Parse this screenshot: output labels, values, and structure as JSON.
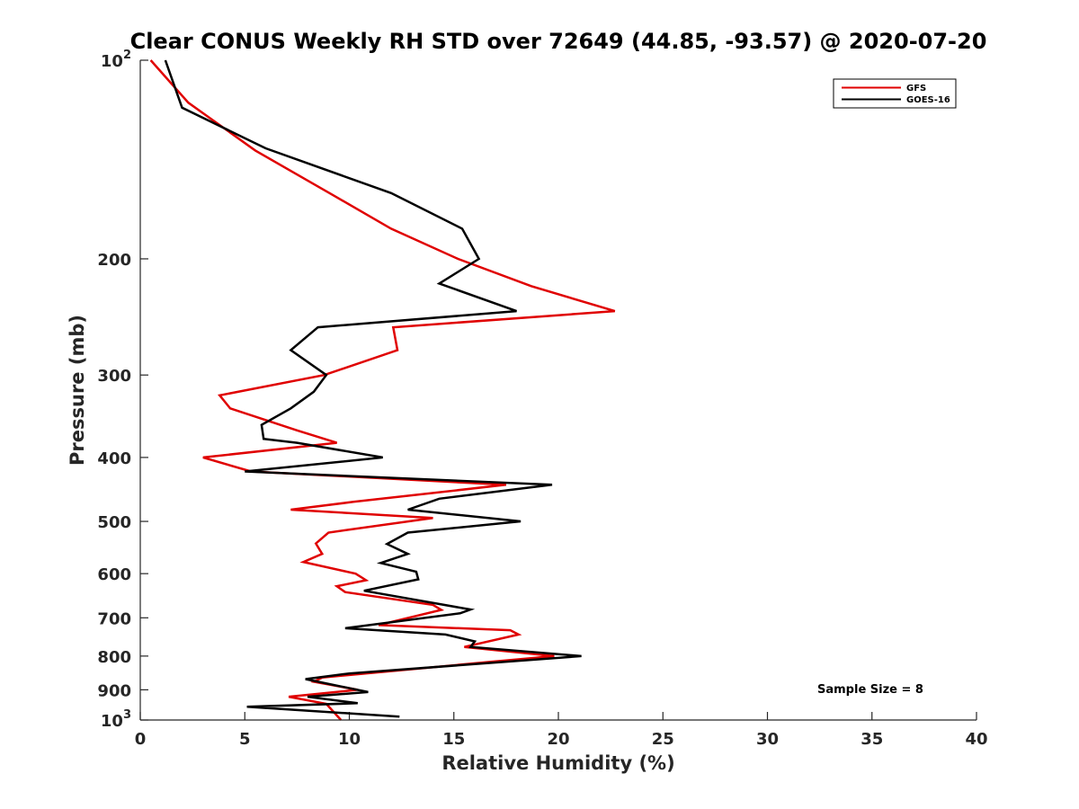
{
  "chart_data": {
    "type": "line",
    "title": "Clear CONUS Weekly RH STD over 72649 (44.85, -93.57) @ 2020-07-20",
    "xlabel": "Relative Humidity (%)",
    "ylabel": "Pressure (mb)",
    "xlim": [
      0,
      40
    ],
    "ylim": [
      100,
      1000
    ],
    "y_scale": "log",
    "y_reversed": true,
    "grid": false,
    "legend_position": "top-right",
    "x_ticks": [
      0,
      5,
      10,
      15,
      20,
      25,
      30,
      35,
      40
    ],
    "x_tick_labels": [
      "0",
      "5",
      "10",
      "15",
      "20",
      "25",
      "30",
      "35",
      "40"
    ],
    "y_ticks": [
      100,
      200,
      300,
      400,
      500,
      600,
      700,
      800,
      900,
      1000
    ],
    "y_tick_labels": [
      {
        "base": "10",
        "exp": "2"
      },
      {
        "base": "200",
        "exp": ""
      },
      {
        "base": "300",
        "exp": ""
      },
      {
        "base": "400",
        "exp": ""
      },
      {
        "base": "500",
        "exp": ""
      },
      {
        "base": "600",
        "exp": ""
      },
      {
        "base": "700",
        "exp": ""
      },
      {
        "base": "800",
        "exp": ""
      },
      {
        "base": "900",
        "exp": ""
      },
      {
        "base": "10",
        "exp": "3"
      }
    ],
    "annotation": "Sample Size = 8",
    "series": [
      {
        "name": "GFS",
        "color": "#e00000",
        "points": [
          [
            0.5,
            100
          ],
          [
            2.3,
            116
          ],
          [
            5.5,
            137
          ],
          [
            9.2,
            160
          ],
          [
            12.0,
            180
          ],
          [
            15.2,
            200
          ],
          [
            18.7,
            220
          ],
          [
            22.7,
            240
          ],
          [
            12.1,
            254
          ],
          [
            12.3,
            275
          ],
          [
            8.8,
            300
          ],
          [
            3.8,
            322
          ],
          [
            4.3,
            337
          ],
          [
            7.5,
            364
          ],
          [
            9.4,
            380
          ],
          [
            3.0,
            400
          ],
          [
            5.3,
            420
          ],
          [
            17.5,
            440
          ],
          [
            10.2,
            467
          ],
          [
            7.2,
            480
          ],
          [
            14.0,
            494
          ],
          [
            9.0,
            520
          ],
          [
            8.4,
            540
          ],
          [
            8.7,
            560
          ],
          [
            7.8,
            576
          ],
          [
            10.3,
            600
          ],
          [
            10.8,
            614
          ],
          [
            9.4,
            627
          ],
          [
            9.8,
            640
          ],
          [
            14.0,
            669
          ],
          [
            14.4,
            681
          ],
          [
            11.4,
            718
          ],
          [
            17.7,
            731
          ],
          [
            18.1,
            742
          ],
          [
            15.5,
            775
          ],
          [
            19.8,
            800
          ],
          [
            17.0,
            815
          ],
          [
            8.7,
            862
          ],
          [
            8.3,
            875
          ],
          [
            10.4,
            900
          ],
          [
            7.1,
            922
          ],
          [
            8.9,
            945
          ],
          [
            9.6,
            1000
          ]
        ]
      },
      {
        "name": "GOES-16",
        "color": "#000000",
        "points": [
          [
            1.2,
            100
          ],
          [
            2.0,
            118
          ],
          [
            6.0,
            136
          ],
          [
            12.0,
            159
          ],
          [
            15.4,
            180
          ],
          [
            16.2,
            200
          ],
          [
            14.3,
            218
          ],
          [
            18.0,
            240
          ],
          [
            8.5,
            254
          ],
          [
            7.2,
            275
          ],
          [
            8.9,
            300
          ],
          [
            8.3,
            318
          ],
          [
            7.2,
            337
          ],
          [
            5.8,
            357
          ],
          [
            5.9,
            375
          ],
          [
            7.5,
            380
          ],
          [
            11.6,
            400
          ],
          [
            5.0,
            420
          ],
          [
            19.7,
            440
          ],
          [
            14.3,
            462
          ],
          [
            12.8,
            480
          ],
          [
            18.2,
            500
          ],
          [
            12.8,
            520
          ],
          [
            11.8,
            541
          ],
          [
            12.8,
            560
          ],
          [
            11.5,
            578
          ],
          [
            13.2,
            596
          ],
          [
            13.3,
            612
          ],
          [
            10.7,
            637
          ],
          [
            15.8,
            680
          ],
          [
            15.3,
            689
          ],
          [
            9.8,
            726
          ],
          [
            14.6,
            742
          ],
          [
            16.0,
            760
          ],
          [
            15.8,
            775
          ],
          [
            21.1,
            800
          ],
          [
            10.0,
            850
          ],
          [
            7.9,
            867
          ],
          [
            10.9,
            907
          ],
          [
            8.0,
            922
          ],
          [
            10.4,
            943
          ],
          [
            5.1,
            955
          ],
          [
            12.4,
            988
          ]
        ]
      }
    ]
  }
}
